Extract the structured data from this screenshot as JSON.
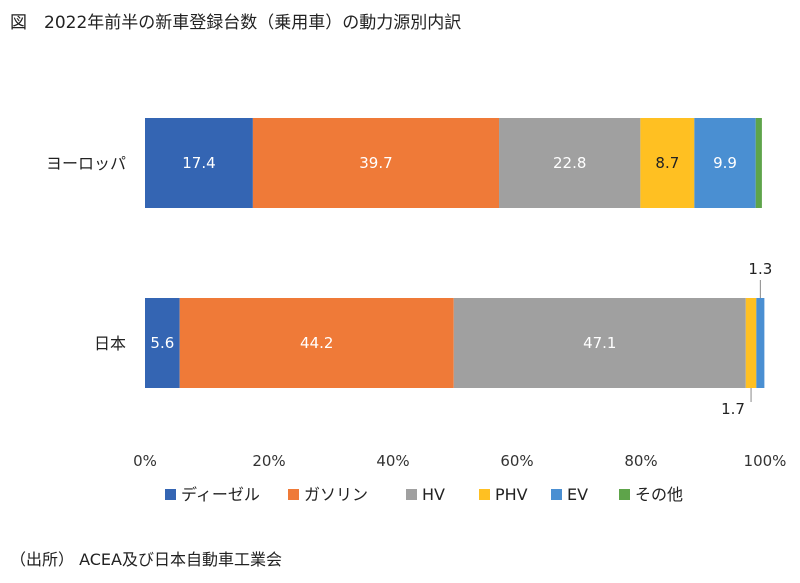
{
  "title": "図　2022年前半の新車登録台数（乗用車）の動力源別内訳",
  "source": "（出所） ACEA及び日本自動車工業会",
  "chart_data": {
    "type": "bar",
    "orientation": "horizontal",
    "stacked": true,
    "categories": [
      "ヨーロッパ",
      "日本"
    ],
    "series": [
      {
        "name": "ディーゼル",
        "color": "#3465b3",
        "values": [
          17.4,
          5.6
        ]
      },
      {
        "name": "ガソリン",
        "color": "#ef7a38",
        "values": [
          39.7,
          44.2
        ]
      },
      {
        "name": "HV",
        "color": "#a0a0a0",
        "values": [
          22.8,
          47.1
        ]
      },
      {
        "name": "PHV",
        "color": "#ffc022",
        "values": [
          8.7,
          1.7
        ]
      },
      {
        "name": "EV",
        "color": "#4a8fd2",
        "values": [
          9.9,
          1.3
        ]
      },
      {
        "name": "その他",
        "color": "#5ea44a",
        "values": [
          1.0,
          0.0
        ]
      }
    ],
    "data_labels": [
      [
        "17.4",
        "39.7",
        "22.8",
        "8.7",
        "9.9",
        ""
      ],
      [
        "5.6",
        "44.2",
        "47.1",
        "1.7",
        "1.3",
        ""
      ]
    ],
    "x_ticks": [
      "0%",
      "20%",
      "40%",
      "60%",
      "80%",
      "100%"
    ],
    "xlim": [
      0,
      100
    ],
    "grid": false,
    "legend_position": "bottom"
  }
}
